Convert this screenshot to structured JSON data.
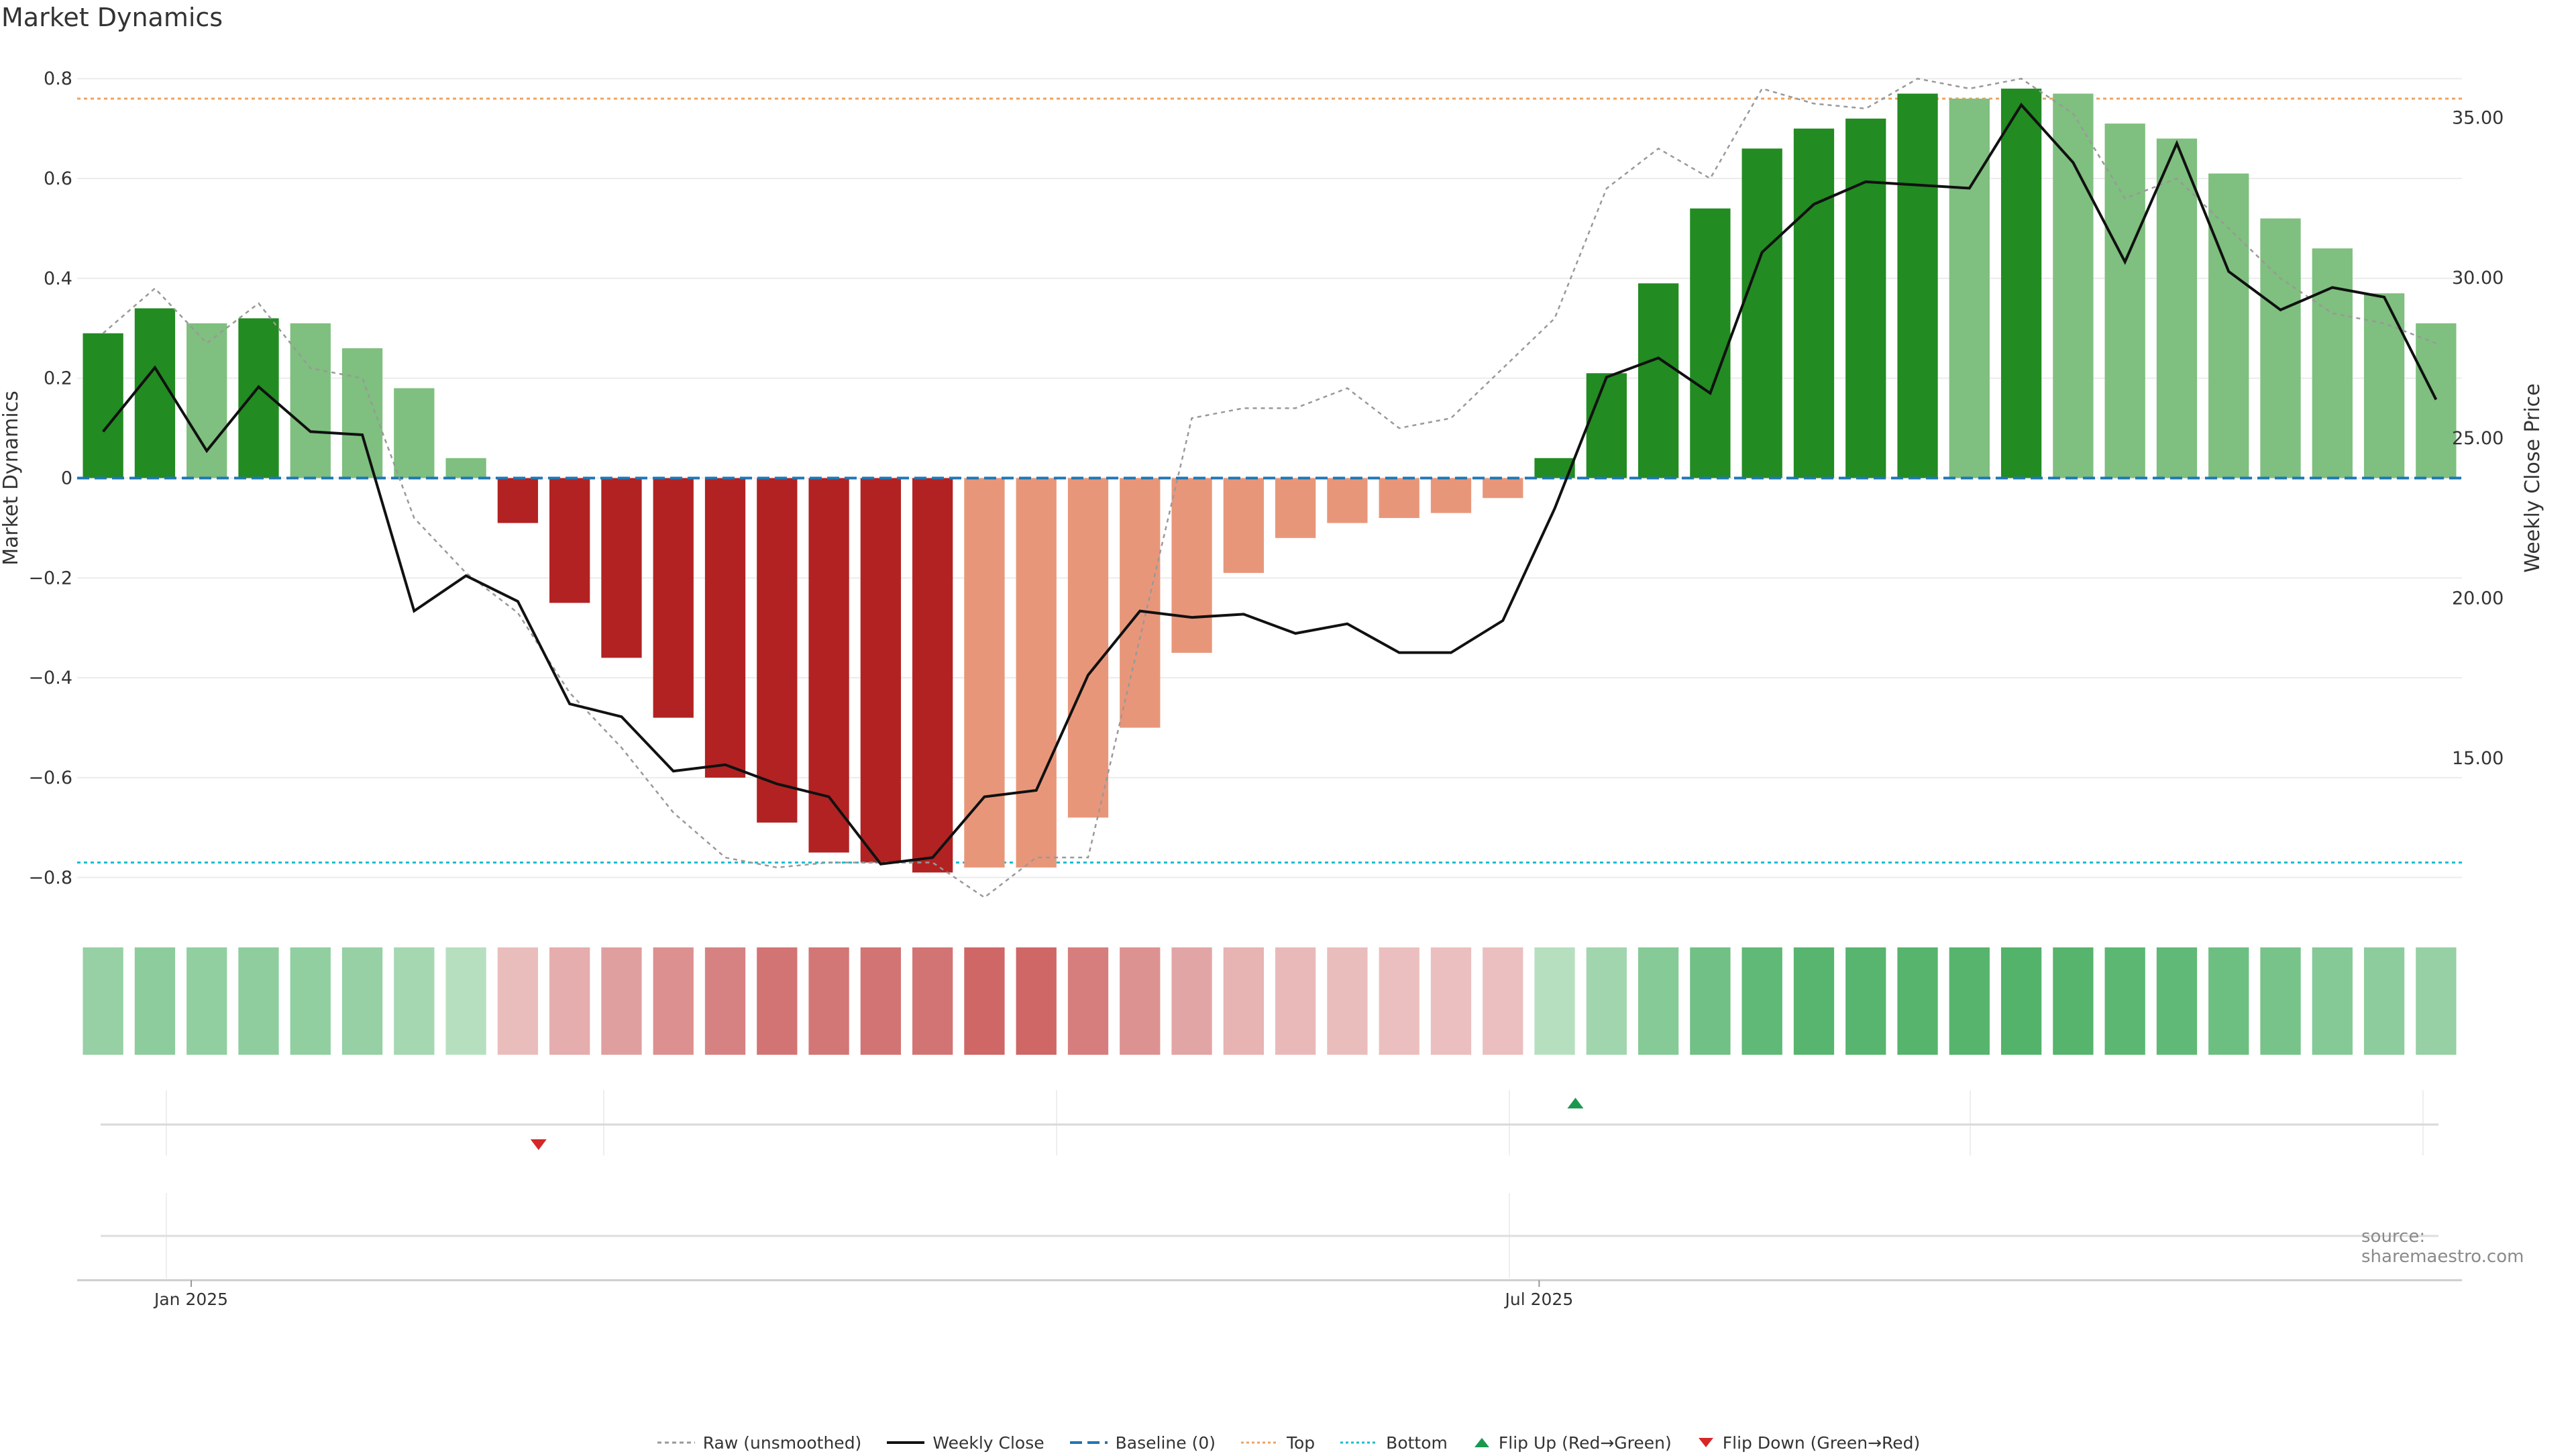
{
  "title": "Market Dynamics",
  "source": "source: sharemaestro.com",
  "legend": {
    "raw": "Raw (unsmoothed)",
    "weekly_close": "Weekly Close",
    "baseline": "Baseline (0)",
    "top": "Top",
    "bottom": "Bottom",
    "flip_up": "Flip Up (Red→Green)",
    "flip_down": "Flip Down (Green→Red)"
  },
  "colors": {
    "strong_green": "#228b22",
    "light_green": "#7fbf7f",
    "strong_red": "#b22222",
    "light_red": "#e8967a",
    "baseline": "#1f77b4",
    "top": "#f0a35e",
    "bottom": "#17becf",
    "raw": "#999999",
    "close": "#111111",
    "flip_up": "#1a9850",
    "flip_down": "#d62728"
  },
  "chart_data": {
    "type": "bar",
    "title": "Market Dynamics",
    "ylabel": "Market Dynamics",
    "y2label": "Weekly Close Price",
    "ylim": [
      -0.85,
      0.85
    ],
    "y2lim": [
      10.5,
      37.0
    ],
    "yticks": [
      -0.8,
      -0.6,
      -0.4,
      -0.2,
      0,
      0.2,
      0.4,
      0.6,
      0.8
    ],
    "yticklabels": [
      "−0.8",
      "−0.6",
      "−0.4",
      "−0.2",
      "0",
      "0.2",
      "0.4",
      "0.6",
      "0.8"
    ],
    "y2ticks": [
      15,
      20,
      25,
      30,
      35
    ],
    "y2ticklabels": [
      "15.00",
      "20.00",
      "25.00",
      "30.00",
      "35.00"
    ],
    "xticks": [
      {
        "index": 1.7,
        "label": "Jan 2025"
      },
      {
        "index": 27.7,
        "label": "Jul 2025"
      }
    ],
    "top_line": 0.76,
    "bottom_line": -0.77,
    "baseline": 0,
    "grid": true,
    "legend_position": "bottom-center",
    "bars": [
      0.29,
      0.34,
      0.31,
      0.32,
      0.31,
      0.26,
      0.18,
      0.04,
      -0.09,
      -0.25,
      -0.36,
      -0.48,
      -0.6,
      -0.69,
      -0.75,
      -0.77,
      -0.79,
      -0.78,
      -0.78,
      -0.68,
      -0.5,
      -0.35,
      -0.19,
      -0.12,
      -0.09,
      -0.08,
      -0.07,
      -0.04,
      0.04,
      0.21,
      0.39,
      0.54,
      0.66,
      0.7,
      0.72,
      0.77,
      0.76,
      0.78,
      0.77,
      0.71,
      0.68,
      0.61,
      0.52,
      0.46,
      0.37,
      0.31
    ],
    "bar_shade": [
      "strong",
      "strong",
      "light",
      "strong",
      "light",
      "light",
      "light",
      "light",
      "strong",
      "strong",
      "strong",
      "strong",
      "strong",
      "strong",
      "strong",
      "strong",
      "strong",
      "light",
      "light",
      "light",
      "light",
      "light",
      "light",
      "light",
      "light",
      "light",
      "light",
      "light",
      "strong",
      "strong",
      "strong",
      "strong",
      "strong",
      "strong",
      "strong",
      "strong",
      "light",
      "strong",
      "light",
      "light",
      "light",
      "light",
      "light",
      "light",
      "light",
      "light"
    ],
    "raw": [
      0.29,
      0.38,
      0.27,
      0.35,
      0.22,
      0.2,
      -0.08,
      -0.19,
      -0.27,
      -0.43,
      -0.54,
      -0.67,
      -0.76,
      -0.78,
      -0.77,
      -0.77,
      -0.77,
      -0.84,
      -0.76,
      -0.76,
      -0.32,
      0.12,
      0.14,
      0.14,
      0.18,
      0.1,
      0.12,
      0.22,
      0.32,
      0.58,
      0.66,
      0.6,
      0.78,
      0.75,
      0.74,
      0.8,
      0.78,
      0.8,
      0.73,
      0.56,
      0.6,
      0.5,
      0.4,
      0.33,
      0.31,
      0.27
    ],
    "close": [
      25.2,
      27.2,
      24.6,
      26.6,
      25.2,
      25.1,
      19.6,
      20.7,
      19.9,
      16.7,
      16.3,
      14.6,
      14.8,
      14.2,
      13.8,
      11.7,
      11.9,
      13.8,
      14.0,
      17.6,
      19.6,
      19.4,
      19.5,
      18.9,
      19.2,
      18.3,
      18.3,
      19.3,
      22.8,
      26.9,
      27.5,
      26.4,
      30.8,
      32.3,
      33.0,
      32.9,
      32.8,
      35.4,
      33.6,
      30.5,
      34.2,
      30.2,
      29.0,
      29.7,
      29.4,
      26.2
    ],
    "intensity": [
      0.4,
      0.45,
      0.42,
      0.44,
      0.42,
      0.4,
      0.3,
      0.18,
      -0.2,
      -0.3,
      -0.4,
      -0.5,
      -0.6,
      -0.7,
      -0.68,
      -0.7,
      -0.7,
      -0.78,
      -0.78,
      -0.62,
      -0.48,
      -0.36,
      -0.26,
      -0.22,
      -0.2,
      -0.18,
      -0.18,
      -0.18,
      0.18,
      0.32,
      0.5,
      0.64,
      0.76,
      0.82,
      0.82,
      0.84,
      0.84,
      0.86,
      0.84,
      0.8,
      0.76,
      0.68,
      0.6,
      0.52,
      0.46,
      0.4
    ],
    "flips": [
      {
        "type": "down",
        "index": 8.4
      },
      {
        "type": "up",
        "index": 28.4
      }
    ]
  }
}
